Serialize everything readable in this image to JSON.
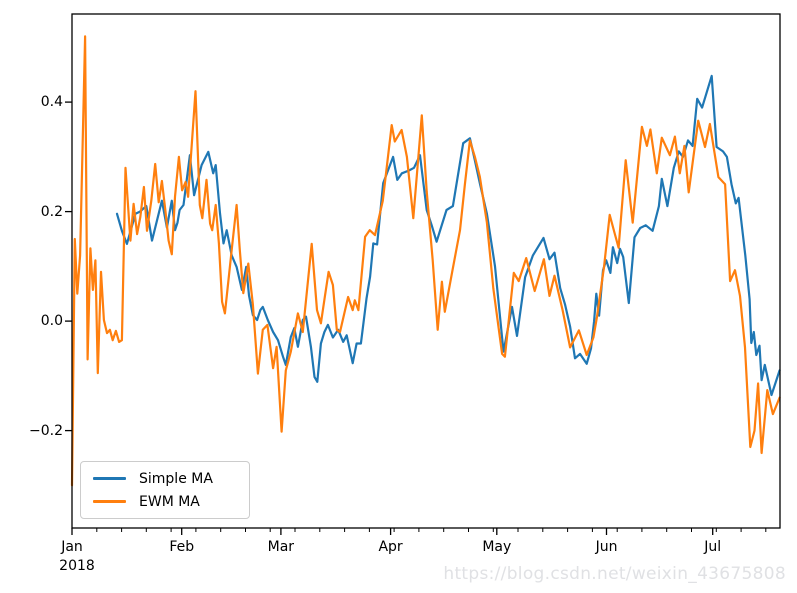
{
  "watermark": {
    "text": "https://blog.csdn.net/weixin_43675808",
    "color": "#e0e1e4"
  },
  "frame": {
    "background": "#ffffff",
    "spine_color": "#000000"
  },
  "chart_data": {
    "type": "line",
    "title": "",
    "xlabel": "",
    "ylabel": "",
    "grid": false,
    "x_axis": {
      "unit": "date",
      "year_label": "2018",
      "xlim_days": [
        0,
        200
      ],
      "major_ticks": [
        {
          "day": 0,
          "label": "Jan"
        },
        {
          "day": 31,
          "label": "Feb"
        },
        {
          "day": 59,
          "label": "Mar"
        },
        {
          "day": 90,
          "label": "Apr"
        },
        {
          "day": 120,
          "label": "May"
        },
        {
          "day": 151,
          "label": "Jun"
        },
        {
          "day": 181,
          "label": "Jul"
        }
      ],
      "minor_tick_days": [
        7,
        14,
        21,
        28,
        35,
        42,
        49,
        56,
        63,
        70,
        77,
        84,
        91,
        98,
        105,
        112,
        119,
        126,
        133,
        140,
        147,
        154,
        161,
        168,
        175,
        182,
        189,
        196
      ]
    },
    "y_axis": {
      "ylim": [
        -0.378,
        0.561
      ],
      "ticks": [
        {
          "value": 0.4,
          "label": "0.4"
        },
        {
          "value": 0.2,
          "label": "0.2"
        },
        {
          "value": 0.0,
          "label": "0.0"
        },
        {
          "value": -0.2,
          "label": "−0.2"
        }
      ]
    },
    "legend": {
      "position": "lower left",
      "labels": [
        "Simple MA",
        "EWM MA"
      ]
    },
    "series": [
      {
        "name": "Simple MA",
        "color": "#1f77b4",
        "points": [
          [
            12.7,
            0.196
          ],
          [
            14.1,
            0.165
          ],
          [
            15.5,
            0.141
          ],
          [
            17.9,
            0.196
          ],
          [
            19.2,
            0.2
          ],
          [
            21.0,
            0.21
          ],
          [
            22.6,
            0.147
          ],
          [
            25.4,
            0.22
          ],
          [
            26.8,
            0.171
          ],
          [
            28.2,
            0.22
          ],
          [
            29.1,
            0.166
          ],
          [
            29.8,
            0.18
          ],
          [
            30.4,
            0.203
          ],
          [
            31.5,
            0.212
          ],
          [
            33.3,
            0.303
          ],
          [
            34.5,
            0.23
          ],
          [
            36.6,
            0.285
          ],
          [
            38.5,
            0.309
          ],
          [
            39.9,
            0.27
          ],
          [
            40.6,
            0.285
          ],
          [
            41.8,
            0.197
          ],
          [
            42.8,
            0.142
          ],
          [
            43.7,
            0.166
          ],
          [
            45.1,
            0.12
          ],
          [
            46.5,
            0.099
          ],
          [
            48.0,
            0.057
          ],
          [
            49.2,
            0.099
          ],
          [
            50.0,
            0.047
          ],
          [
            51.1,
            0.011
          ],
          [
            52.3,
            0.002
          ],
          [
            53.2,
            0.02
          ],
          [
            53.9,
            0.026
          ],
          [
            55.3,
            0.002
          ],
          [
            56.8,
            -0.02
          ],
          [
            58.2,
            -0.035
          ],
          [
            59.6,
            -0.065
          ],
          [
            60.4,
            -0.08
          ],
          [
            61.8,
            -0.029
          ],
          [
            62.8,
            -0.013
          ],
          [
            63.8,
            -0.047
          ],
          [
            65.2,
            0.002
          ],
          [
            66.1,
            0.008
          ],
          [
            67.5,
            -0.047
          ],
          [
            68.5,
            -0.102
          ],
          [
            69.3,
            -0.111
          ],
          [
            70.3,
            -0.041
          ],
          [
            71.3,
            -0.02
          ],
          [
            72.3,
            -0.007
          ],
          [
            73.7,
            -0.03
          ],
          [
            75.2,
            -0.016
          ],
          [
            76.6,
            -0.038
          ],
          [
            77.6,
            -0.026
          ],
          [
            79.3,
            -0.077
          ],
          [
            80.4,
            -0.041
          ],
          [
            81.6,
            -0.041
          ],
          [
            83.2,
            0.041
          ],
          [
            84.2,
            0.081
          ],
          [
            85.1,
            0.142
          ],
          [
            86.2,
            0.14
          ],
          [
            87.9,
            0.252
          ],
          [
            90.7,
            0.3
          ],
          [
            91.9,
            0.258
          ],
          [
            93.2,
            0.27
          ],
          [
            95.1,
            0.275
          ],
          [
            96.6,
            0.28
          ],
          [
            98.3,
            0.303
          ],
          [
            100.2,
            0.203
          ],
          [
            101.6,
            0.175
          ],
          [
            103.0,
            0.145
          ],
          [
            105.8,
            0.203
          ],
          [
            107.6,
            0.21
          ],
          [
            110.5,
            0.325
          ],
          [
            112.4,
            0.334
          ],
          [
            113.6,
            0.3
          ],
          [
            115.2,
            0.252
          ],
          [
            117.2,
            0.196
          ],
          [
            119.5,
            0.1
          ],
          [
            121.9,
            -0.056
          ],
          [
            124.3,
            0.026
          ],
          [
            125.7,
            -0.027
          ],
          [
            128.0,
            0.08
          ],
          [
            130.2,
            0.12
          ],
          [
            133.2,
            0.152
          ],
          [
            134.9,
            0.113
          ],
          [
            136.3,
            0.125
          ],
          [
            137.9,
            0.06
          ],
          [
            139.3,
            0.03
          ],
          [
            140.7,
            -0.01
          ],
          [
            142.1,
            -0.068
          ],
          [
            143.5,
            -0.06
          ],
          [
            145.4,
            -0.078
          ],
          [
            146.6,
            -0.05
          ],
          [
            147.5,
            0.0
          ],
          [
            148.1,
            0.05
          ],
          [
            148.9,
            0.01
          ],
          [
            150.0,
            0.093
          ],
          [
            150.9,
            0.111
          ],
          [
            152.1,
            0.088
          ],
          [
            152.8,
            0.135
          ],
          [
            154.0,
            0.106
          ],
          [
            154.8,
            0.132
          ],
          [
            155.7,
            0.117
          ],
          [
            157.3,
            0.033
          ],
          [
            158.9,
            0.153
          ],
          [
            160.5,
            0.17
          ],
          [
            162.1,
            0.175
          ],
          [
            164.0,
            0.165
          ],
          [
            165.8,
            0.21
          ],
          [
            166.6,
            0.26
          ],
          [
            168.2,
            0.21
          ],
          [
            170.0,
            0.28
          ],
          [
            171.4,
            0.31
          ],
          [
            172.6,
            0.3
          ],
          [
            174.0,
            0.33
          ],
          [
            175.3,
            0.32
          ],
          [
            176.6,
            0.406
          ],
          [
            178.0,
            0.39
          ],
          [
            180.7,
            0.448
          ],
          [
            182.1,
            0.318
          ],
          [
            183.9,
            0.31
          ],
          [
            185.0,
            0.3
          ],
          [
            186.3,
            0.25
          ],
          [
            187.5,
            0.215
          ],
          [
            188.3,
            0.225
          ],
          [
            190.2,
            0.12
          ],
          [
            191.4,
            0.04
          ],
          [
            191.9,
            -0.04
          ],
          [
            192.6,
            -0.02
          ],
          [
            193.3,
            -0.062
          ],
          [
            194.2,
            -0.045
          ],
          [
            194.8,
            -0.108
          ],
          [
            195.7,
            -0.08
          ],
          [
            197.6,
            -0.135
          ],
          [
            199.9,
            -0.09
          ]
        ]
      },
      {
        "name": "EWM MA",
        "color": "#ff7f0e",
        "points": [
          [
            0,
            -0.3
          ],
          [
            0.8,
            0.15
          ],
          [
            1.5,
            0.05
          ],
          [
            2.3,
            0.12
          ],
          [
            3.7,
            0.52
          ],
          [
            4.4,
            -0.07
          ],
          [
            5.2,
            0.133
          ],
          [
            5.9,
            0.057
          ],
          [
            6.6,
            0.111
          ],
          [
            7.3,
            -0.095
          ],
          [
            8.2,
            0.09
          ],
          [
            9.0,
            0.002
          ],
          [
            9.9,
            -0.022
          ],
          [
            10.7,
            -0.016
          ],
          [
            11.5,
            -0.035
          ],
          [
            12.4,
            -0.018
          ],
          [
            13.3,
            -0.038
          ],
          [
            14.1,
            -0.035
          ],
          [
            15.1,
            0.28
          ],
          [
            16.5,
            0.147
          ],
          [
            17.4,
            0.214
          ],
          [
            18.4,
            0.159
          ],
          [
            19.3,
            0.19
          ],
          [
            20.3,
            0.245
          ],
          [
            21.2,
            0.165
          ],
          [
            22.4,
            0.22
          ],
          [
            23.5,
            0.287
          ],
          [
            24.5,
            0.217
          ],
          [
            25.4,
            0.256
          ],
          [
            26.4,
            0.2
          ],
          [
            27.3,
            0.147
          ],
          [
            28.2,
            0.122
          ],
          [
            29.1,
            0.227
          ],
          [
            30.2,
            0.3
          ],
          [
            31.1,
            0.239
          ],
          [
            32.1,
            0.254
          ],
          [
            32.8,
            0.227
          ],
          [
            34.9,
            0.42
          ],
          [
            36.1,
            0.212
          ],
          [
            36.8,
            0.188
          ],
          [
            38.0,
            0.258
          ],
          [
            39.0,
            0.178
          ],
          [
            39.6,
            0.166
          ],
          [
            40.6,
            0.212
          ],
          [
            41.5,
            0.142
          ],
          [
            42.4,
            0.035
          ],
          [
            43.2,
            0.014
          ],
          [
            45.1,
            0.13
          ],
          [
            46.5,
            0.212
          ],
          [
            47.4,
            0.13
          ],
          [
            48.4,
            0.051
          ],
          [
            49.8,
            0.105
          ],
          [
            51.1,
            0.03
          ],
          [
            52.5,
            -0.096
          ],
          [
            53.9,
            -0.016
          ],
          [
            55.2,
            -0.007
          ],
          [
            56.8,
            -0.086
          ],
          [
            57.8,
            -0.047
          ],
          [
            59.2,
            -0.202
          ],
          [
            60.4,
            -0.09
          ],
          [
            61.8,
            -0.056
          ],
          [
            63.8,
            0.014
          ],
          [
            65.2,
            -0.02
          ],
          [
            67.7,
            0.141
          ],
          [
            69.2,
            0.02
          ],
          [
            70.3,
            -0.004
          ],
          [
            71.4,
            0.044
          ],
          [
            72.5,
            0.09
          ],
          [
            73.7,
            0.066
          ],
          [
            74.8,
            -0.016
          ],
          [
            75.7,
            -0.02
          ],
          [
            78.0,
            0.044
          ],
          [
            79.3,
            0.02
          ],
          [
            79.9,
            0.038
          ],
          [
            80.9,
            0.02
          ],
          [
            82.8,
            0.154
          ],
          [
            84.1,
            0.166
          ],
          [
            85.6,
            0.157
          ],
          [
            87.8,
            0.22
          ],
          [
            90.3,
            0.358
          ],
          [
            91.2,
            0.328
          ],
          [
            93.1,
            0.349
          ],
          [
            94.6,
            0.3
          ],
          [
            96.4,
            0.188
          ],
          [
            98.8,
            0.376
          ],
          [
            100.2,
            0.237
          ],
          [
            101.9,
            0.111
          ],
          [
            103.3,
            -0.016
          ],
          [
            104.5,
            0.072
          ],
          [
            105.3,
            0.017
          ],
          [
            107.4,
            0.09
          ],
          [
            109.6,
            0.166
          ],
          [
            111.0,
            0.25
          ],
          [
            112.4,
            0.33
          ],
          [
            113.8,
            0.3
          ],
          [
            115.2,
            0.264
          ],
          [
            117.2,
            0.18
          ],
          [
            119.0,
            0.06
          ],
          [
            121.5,
            -0.06
          ],
          [
            122.3,
            -0.065
          ],
          [
            124.8,
            0.088
          ],
          [
            126.2,
            0.073
          ],
          [
            128.3,
            0.115
          ],
          [
            130.7,
            0.055
          ],
          [
            133.3,
            0.113
          ],
          [
            134.9,
            0.046
          ],
          [
            136.3,
            0.083
          ],
          [
            138.6,
            0.02
          ],
          [
            140.7,
            -0.048
          ],
          [
            143.2,
            -0.017
          ],
          [
            145.4,
            -0.062
          ],
          [
            147.3,
            -0.03
          ],
          [
            148.3,
            0.008
          ],
          [
            150.3,
            0.1
          ],
          [
            151.9,
            0.194
          ],
          [
            153.3,
            0.16
          ],
          [
            154.4,
            0.134
          ],
          [
            156.4,
            0.294
          ],
          [
            158.4,
            0.18
          ],
          [
            161.0,
            0.355
          ],
          [
            162.4,
            0.32
          ],
          [
            163.4,
            0.35
          ],
          [
            165.2,
            0.27
          ],
          [
            166.6,
            0.335
          ],
          [
            168.9,
            0.303
          ],
          [
            170.3,
            0.337
          ],
          [
            171.7,
            0.27
          ],
          [
            173.0,
            0.32
          ],
          [
            174.2,
            0.235
          ],
          [
            176.9,
            0.366
          ],
          [
            178.8,
            0.318
          ],
          [
            180.2,
            0.36
          ],
          [
            182.6,
            0.263
          ],
          [
            184.5,
            0.25
          ],
          [
            185.9,
            0.073
          ],
          [
            187.3,
            0.093
          ],
          [
            188.7,
            0.046
          ],
          [
            190.1,
            -0.048
          ],
          [
            191.6,
            -0.23
          ],
          [
            192.8,
            -0.2
          ],
          [
            193.8,
            -0.114
          ],
          [
            194.8,
            -0.241
          ],
          [
            196.4,
            -0.126
          ],
          [
            198.0,
            -0.17
          ],
          [
            199.9,
            -0.14
          ]
        ]
      }
    ]
  }
}
